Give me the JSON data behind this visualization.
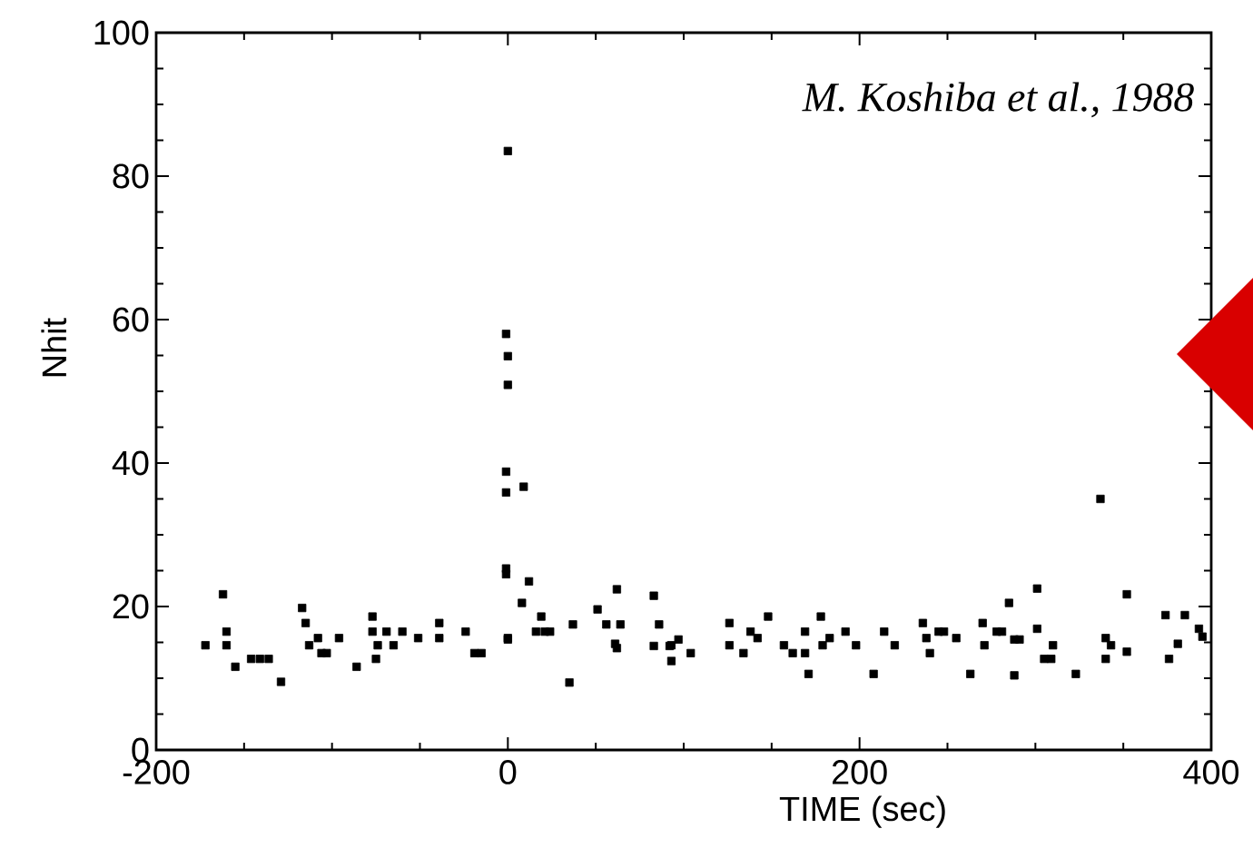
{
  "chart_data": {
    "type": "scatter",
    "xlabel": "TIME (sec)",
    "ylabel": "Nhit",
    "annotations": [
      "M. Koshiba et al., 1988"
    ],
    "xlim": [
      -200,
      400
    ],
    "xticks": [
      -200,
      0,
      200,
      400
    ],
    "ylim": [
      0,
      100
    ],
    "yticks": [
      0,
      20,
      40,
      60,
      80,
      100
    ],
    "grid": false,
    "marker": "square",
    "series": [
      {
        "color": "#000000",
        "x": [
          -172,
          -162,
          -160,
          -160,
          -155,
          -146,
          -141,
          -136,
          -129,
          -117,
          -115,
          -113,
          -108,
          -106,
          -103,
          -96,
          -86,
          -77,
          -77,
          -75,
          -74,
          -69,
          -65,
          -60,
          -51,
          -39,
          -39,
          -24,
          -19,
          -15,
          0,
          0,
          -1,
          0,
          0,
          -1,
          -1,
          9,
          -1,
          -1,
          12,
          8,
          19,
          16,
          21,
          24,
          0,
          37,
          35,
          51,
          56,
          62,
          64,
          61,
          62,
          83,
          86,
          83,
          92,
          93,
          97,
          93,
          104,
          126,
          126,
          134,
          138,
          142,
          148,
          157,
          162,
          169,
          169,
          171,
          178,
          179,
          183,
          192,
          198,
          208,
          214,
          220,
          236,
          238,
          240,
          245,
          248,
          255,
          263,
          270,
          271,
          278,
          281,
          285,
          288,
          288,
          291,
          301,
          301,
          305,
          310,
          309,
          323,
          337,
          340,
          343,
          340,
          352,
          352,
          374,
          376,
          381,
          385,
          393,
          395
        ],
        "values": [
          14.6,
          21.7,
          16.5,
          14.6,
          11.6,
          12.7,
          12.7,
          12.7,
          9.5,
          19.8,
          17.7,
          14.6,
          15.6,
          13.5,
          13.5,
          15.6,
          11.6,
          18.6,
          16.5,
          12.7,
          14.6,
          16.5,
          14.6,
          16.5,
          15.6,
          17.7,
          15.6,
          16.5,
          13.5,
          13.5,
          15.6,
          83.5,
          58,
          54.9,
          50.9,
          38.8,
          35.9,
          36.7,
          25.3,
          24.5,
          23.5,
          20.5,
          18.6,
          16.5,
          16.5,
          16.5,
          15.4,
          17.5,
          9.4,
          19.6,
          17.5,
          22.4,
          17.5,
          14.8,
          14.2,
          21.5,
          17.5,
          14.5,
          14.5,
          12.4,
          15.4,
          14.6,
          13.5,
          17.7,
          14.6,
          13.5,
          16.5,
          15.6,
          18.6,
          14.6,
          13.5,
          13.5,
          16.5,
          10.6,
          18.6,
          14.6,
          15.6,
          16.5,
          14.6,
          10.6,
          16.5,
          14.6,
          17.7,
          15.6,
          13.5,
          16.5,
          16.5,
          15.6,
          10.6,
          17.7,
          14.6,
          16.5,
          16.5,
          20.5,
          15.4,
          10.4,
          15.4,
          22.5,
          16.9,
          12.7,
          14.6,
          12.7,
          10.6,
          35,
          15.6,
          14.6,
          12.7,
          21.7,
          13.7,
          18.8,
          12.7,
          14.8,
          18.8,
          16.9,
          15.8
        ]
      }
    ]
  }
}
